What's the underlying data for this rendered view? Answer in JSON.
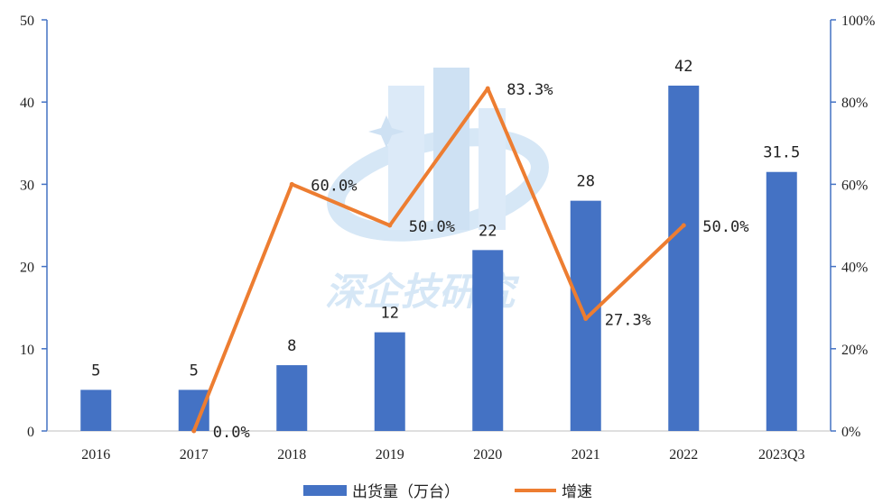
{
  "chart_data": {
    "type": "bar+line",
    "categories": [
      "2016",
      "2017",
      "2018",
      "2019",
      "2020",
      "2021",
      "2022",
      "2023Q3"
    ],
    "series": [
      {
        "name": "出货量（万台）",
        "type": "bar",
        "axis": "left",
        "color": "#4472c4",
        "values": [
          5,
          5,
          8,
          12,
          22,
          28,
          42,
          31.5
        ],
        "labels": [
          "5",
          "5",
          "8",
          "12",
          "22",
          "28",
          "42",
          "31.5"
        ]
      },
      {
        "name": "增速",
        "type": "line",
        "axis": "right",
        "color": "#ed7d31",
        "values": [
          null,
          0.0,
          60.0,
          50.0,
          83.3,
          27.3,
          50.0,
          null
        ],
        "labels": [
          null,
          "0.0%",
          "60.0%",
          "50.0%",
          "83.3%",
          "27.3%",
          "50.0%",
          null
        ]
      }
    ],
    "y_left": {
      "min": 0,
      "max": 50,
      "ticks": [
        "0",
        "10",
        "20",
        "30",
        "40",
        "50"
      ]
    },
    "y_right": {
      "min": 0,
      "max": 100,
      "ticks": [
        "0%",
        "20%",
        "40%",
        "60%",
        "80%",
        "100%"
      ]
    },
    "legend": {
      "position": "bottom",
      "bar_label": "出货量（万台）",
      "line_label": "增速"
    },
    "watermark": "深企技研究",
    "axis_color": "#4472c4"
  }
}
